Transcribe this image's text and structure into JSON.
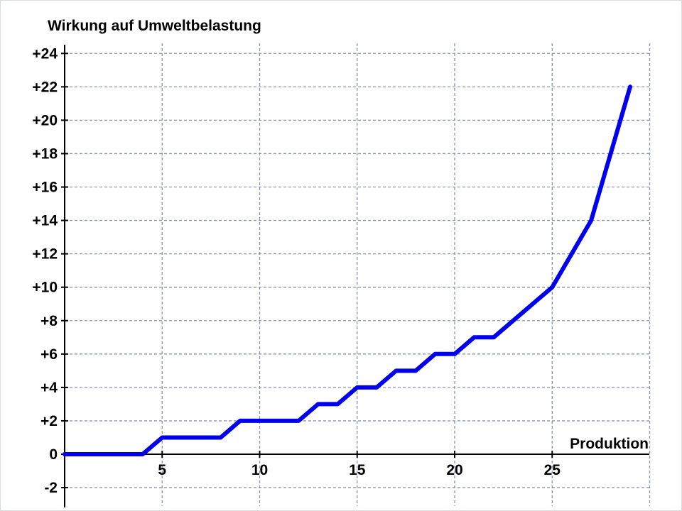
{
  "chart_data": {
    "type": "line",
    "ylabel": "Wirkung auf Umweltbelastung",
    "xlabel": "Produktion",
    "xlim": [
      0,
      30
    ],
    "ylim": [
      -3,
      25
    ],
    "x_ticks": [
      5,
      10,
      15,
      20,
      25
    ],
    "x_tick_labels": [
      "5",
      "10",
      "15",
      "20",
      "25"
    ],
    "y_ticks": [
      24,
      22,
      20,
      18,
      16,
      14,
      12,
      10,
      8,
      6,
      4,
      2,
      0,
      -2
    ],
    "y_tick_labels": [
      "+24",
      "+22",
      "+20",
      "+18",
      "+16",
      "+14",
      "+12",
      "+10",
      "+8",
      "+6",
      "+4",
      "+2",
      "0",
      "-2"
    ],
    "grid": true,
    "colors": {
      "line": "#0000ee",
      "grid": "#8a93b0",
      "axis": "#000000"
    },
    "series": [
      {
        "x": [
          0,
          4,
          5,
          8,
          9,
          12,
          13,
          14,
          15,
          16,
          17,
          18,
          19,
          20,
          21,
          22,
          25,
          27,
          29
        ],
        "y": [
          0,
          0,
          1,
          1,
          2,
          2,
          3,
          3,
          4,
          4,
          5,
          5,
          6,
          6,
          7,
          7,
          10,
          14,
          22
        ]
      }
    ]
  }
}
